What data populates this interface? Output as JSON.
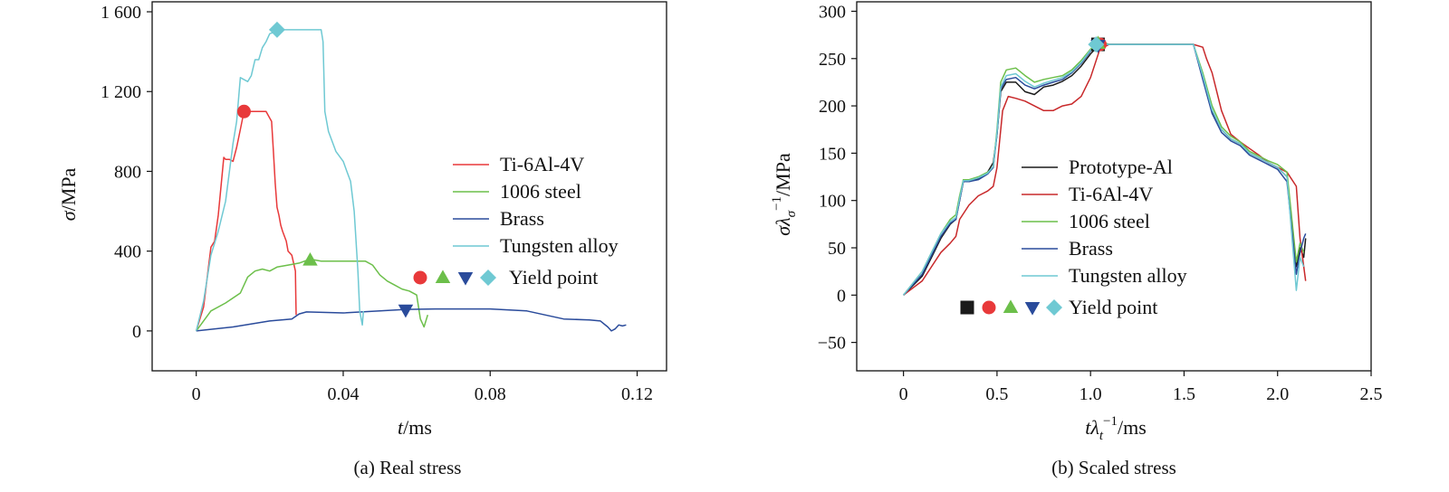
{
  "chart_data": [
    {
      "type": "line",
      "caption": "(a) Real stress",
      "xlabel": "t/ms",
      "ylabel": "σ/MPa",
      "xlim": [
        -0.012,
        0.128
      ],
      "ylim": [
        -200,
        1650
      ],
      "xticks": [
        0,
        0.04,
        0.08,
        0.12
      ],
      "xtick_labels": [
        "0",
        "0.04",
        "0.08",
        "0.12"
      ],
      "yticks": [
        0,
        400,
        800,
        1200,
        1600
      ],
      "ytick_labels": [
        "0",
        "400",
        "800",
        "1 200",
        "1 600"
      ],
      "grid": false,
      "legend_position": "right",
      "series": [
        {
          "name": "Ti-6Al-4V",
          "color": "#e8393a",
          "x": [
            0,
            0.002,
            0.004,
            0.005,
            0.006,
            0.0075,
            0.008,
            0.009,
            0.01,
            0.011,
            0.012,
            0.013,
            0.015,
            0.017,
            0.019,
            0.0205,
            0.021,
            0.0215,
            0.022,
            0.0225,
            0.023,
            0.0235,
            0.0245,
            0.025,
            0.026,
            0.027,
            0.0271,
            0.0272
          ],
          "y": [
            0,
            120,
            420,
            450,
            580,
            870,
            860,
            860,
            850,
            920,
            1010,
            1100,
            1100,
            1100,
            1100,
            1050,
            900,
            740,
            620,
            580,
            530,
            500,
            450,
            400,
            380,
            300,
            180,
            80
          ]
        },
        {
          "name": "1006 steel",
          "color": "#6cbf4a",
          "x": [
            0,
            0.004,
            0.008,
            0.012,
            0.014,
            0.016,
            0.018,
            0.02,
            0.022,
            0.025,
            0.028,
            0.031,
            0.034,
            0.038,
            0.042,
            0.046,
            0.048,
            0.05,
            0.052,
            0.054,
            0.056,
            0.058,
            0.06,
            0.061,
            0.062,
            0.063
          ],
          "y": [
            0,
            100,
            140,
            190,
            270,
            300,
            310,
            300,
            320,
            330,
            340,
            360,
            350,
            350,
            350,
            350,
            330,
            280,
            250,
            230,
            210,
            200,
            180,
            60,
            20,
            80
          ]
        },
        {
          "name": "Brass",
          "color": "#2a4b9b",
          "x": [
            0,
            0.01,
            0.02,
            0.026,
            0.028,
            0.03,
            0.04,
            0.05,
            0.057,
            0.065,
            0.08,
            0.09,
            0.1,
            0.107,
            0.11,
            0.112,
            0.113,
            0.114,
            0.115,
            0.116,
            0.117
          ],
          "y": [
            0,
            20,
            50,
            60,
            85,
            95,
            90,
            100,
            108,
            110,
            110,
            100,
            60,
            55,
            50,
            20,
            0,
            10,
            30,
            25,
            30
          ]
        },
        {
          "name": "Tungsten alloy",
          "color": "#6fc9d3",
          "x": [
            0,
            0.002,
            0.004,
            0.006,
            0.008,
            0.01,
            0.011,
            0.012,
            0.014,
            0.015,
            0.016,
            0.017,
            0.018,
            0.019,
            0.02,
            0.0215,
            0.022,
            0.026,
            0.03,
            0.034,
            0.0345,
            0.035,
            0.036,
            0.038,
            0.04,
            0.041,
            0.042,
            0.043,
            0.044,
            0.0445,
            0.0452,
            0.0455
          ],
          "y": [
            0,
            150,
            380,
            500,
            650,
            940,
            1050,
            1270,
            1250,
            1280,
            1360,
            1360,
            1420,
            1450,
            1490,
            1500,
            1510,
            1510,
            1510,
            1510,
            1450,
            1100,
            1000,
            900,
            850,
            800,
            750,
            600,
            300,
            100,
            30,
            100
          ]
        }
      ],
      "yield_points": [
        {
          "series": "Ti-6Al-4V",
          "marker": "circle",
          "color": "#e8393a",
          "x": 0.013,
          "y": 1100
        },
        {
          "series": "1006 steel",
          "marker": "triangle-up",
          "color": "#6cbf4a",
          "x": 0.031,
          "y": 355
        },
        {
          "series": "Brass",
          "marker": "triangle-down",
          "color": "#2a4b9b",
          "x": 0.057,
          "y": 105
        },
        {
          "series": "Tungsten alloy",
          "marker": "diamond",
          "color": "#6fc9d3",
          "x": 0.022,
          "y": 1510
        }
      ],
      "legend": {
        "entries": [
          "Ti-6Al-4V",
          "1006 steel",
          "Brass",
          "Tungsten alloy"
        ],
        "marker_entry_label": "Yield point",
        "marker_entry_markers": [
          "circle",
          "triangle-up",
          "triangle-down",
          "diamond"
        ]
      }
    },
    {
      "type": "line",
      "caption": "(b) Scaled stress",
      "xlabel": "tλ_t^-1/ms",
      "ylabel": "σλ_σ^-1/MPa",
      "xlim": [
        -0.25,
        2.5
      ],
      "ylim": [
        -80,
        310
      ],
      "xticks": [
        0,
        0.5,
        1.0,
        1.5,
        2.0,
        2.5
      ],
      "xtick_labels": [
        "0",
        "0.5",
        "1.0",
        "1.5",
        "2.0",
        "2.5"
      ],
      "yticks": [
        -50,
        0,
        50,
        100,
        150,
        200,
        250,
        300
      ],
      "ytick_labels": [
        "−50",
        "0",
        "50",
        "100",
        "150",
        "200",
        "250",
        "300"
      ],
      "grid": false,
      "legend_position": "center",
      "series": [
        {
          "name": "Prototype-Al",
          "color": "#1a1a1a",
          "x": [
            0,
            0.1,
            0.15,
            0.2,
            0.25,
            0.28,
            0.3,
            0.32,
            0.35,
            0.4,
            0.45,
            0.48,
            0.5,
            0.52,
            0.55,
            0.6,
            0.65,
            0.7,
            0.75,
            0.8,
            0.85,
            0.9,
            0.95,
            1.0,
            1.05,
            1.1,
            1.2,
            1.3,
            1.4,
            1.5,
            1.55,
            1.6,
            1.65,
            1.7,
            1.75,
            1.8,
            1.85,
            1.9,
            1.95,
            2.0,
            2.05,
            2.1,
            2.12,
            2.14,
            2.15
          ],
          "y": [
            0,
            20,
            40,
            60,
            75,
            80,
            100,
            120,
            120,
            123,
            130,
            140,
            170,
            215,
            225,
            225,
            215,
            212,
            220,
            222,
            226,
            232,
            242,
            255,
            265,
            265,
            265,
            265,
            265,
            265,
            265,
            230,
            195,
            175,
            165,
            160,
            150,
            145,
            140,
            135,
            125,
            30,
            50,
            40,
            60
          ]
        },
        {
          "name": "Ti-6Al-4V",
          "color": "#c8282a",
          "x": [
            0,
            0.1,
            0.15,
            0.2,
            0.25,
            0.28,
            0.3,
            0.35,
            0.4,
            0.45,
            0.48,
            0.5,
            0.53,
            0.56,
            0.6,
            0.65,
            0.7,
            0.75,
            0.8,
            0.85,
            0.9,
            0.95,
            1.0,
            1.05,
            1.1,
            1.2,
            1.3,
            1.4,
            1.5,
            1.55,
            1.6,
            1.62,
            1.65,
            1.7,
            1.75,
            1.8,
            1.85,
            1.9,
            1.95,
            2.0,
            2.05,
            2.1,
            2.12,
            2.15
          ],
          "y": [
            0,
            15,
            30,
            45,
            55,
            62,
            80,
            95,
            105,
            110,
            115,
            135,
            195,
            210,
            208,
            205,
            200,
            195,
            195,
            200,
            202,
            210,
            230,
            260,
            265,
            265,
            265,
            265,
            265,
            265,
            262,
            250,
            235,
            195,
            170,
            162,
            155,
            148,
            140,
            135,
            130,
            115,
            60,
            15
          ]
        },
        {
          "name": "1006 steel",
          "color": "#6cbf4a",
          "x": [
            0,
            0.1,
            0.15,
            0.2,
            0.25,
            0.28,
            0.3,
            0.32,
            0.35,
            0.4,
            0.45,
            0.48,
            0.5,
            0.52,
            0.55,
            0.6,
            0.65,
            0.7,
            0.75,
            0.8,
            0.85,
            0.9,
            0.95,
            1.0,
            1.05,
            1.1,
            1.2,
            1.3,
            1.4,
            1.5,
            1.55,
            1.6,
            1.65,
            1.7,
            1.75,
            1.8,
            1.85,
            1.9,
            1.95,
            2.0,
            2.05,
            2.1,
            2.12,
            2.14
          ],
          "y": [
            0,
            25,
            45,
            65,
            80,
            85,
            105,
            122,
            122,
            125,
            130,
            135,
            175,
            225,
            238,
            240,
            232,
            225,
            228,
            230,
            232,
            238,
            248,
            260,
            268,
            265,
            265,
            265,
            265,
            265,
            265,
            235,
            200,
            178,
            168,
            162,
            152,
            147,
            142,
            138,
            130,
            35,
            55,
            45
          ]
        },
        {
          "name": "Brass",
          "color": "#2a4b9b",
          "x": [
            0,
            0.1,
            0.15,
            0.2,
            0.25,
            0.28,
            0.3,
            0.32,
            0.35,
            0.4,
            0.45,
            0.48,
            0.5,
            0.52,
            0.55,
            0.6,
            0.65,
            0.7,
            0.75,
            0.8,
            0.85,
            0.9,
            0.95,
            1.0,
            1.05,
            1.1,
            1.2,
            1.3,
            1.4,
            1.5,
            1.55,
            1.6,
            1.65,
            1.7,
            1.75,
            1.8,
            1.85,
            1.9,
            1.95,
            2.0,
            2.05,
            2.1,
            2.12,
            2.14,
            2.15
          ],
          "y": [
            0,
            22,
            42,
            62,
            76,
            80,
            100,
            120,
            120,
            122,
            128,
            135,
            170,
            218,
            228,
            230,
            222,
            218,
            222,
            225,
            228,
            235,
            245,
            258,
            265,
            265,
            265,
            265,
            265,
            265,
            265,
            228,
            192,
            172,
            163,
            158,
            148,
            143,
            138,
            133,
            120,
            22,
            45,
            60,
            65
          ]
        },
        {
          "name": "Tungsten alloy",
          "color": "#6fc9d3",
          "x": [
            0,
            0.1,
            0.15,
            0.2,
            0.25,
            0.28,
            0.3,
            0.32,
            0.35,
            0.4,
            0.45,
            0.48,
            0.5,
            0.52,
            0.55,
            0.6,
            0.65,
            0.7,
            0.75,
            0.8,
            0.85,
            0.9,
            0.95,
            1.0,
            1.05,
            1.1,
            1.2,
            1.3,
            1.4,
            1.5,
            1.55,
            1.6,
            1.65,
            1.7,
            1.75,
            1.8,
            1.85,
            1.9,
            1.95,
            2.0,
            2.05,
            2.1,
            2.12,
            2.14
          ],
          "y": [
            0,
            25,
            45,
            65,
            78,
            82,
            102,
            121,
            121,
            124,
            129,
            136,
            172,
            220,
            232,
            234,
            226,
            220,
            224,
            227,
            230,
            236,
            246,
            259,
            265,
            265,
            265,
            265,
            265,
            265,
            265,
            232,
            196,
            175,
            165,
            160,
            150,
            145,
            140,
            135,
            125,
            5,
            40,
            30
          ]
        }
      ],
      "yield_points": [
        {
          "series": "Prototype-Al",
          "marker": "square",
          "color": "#1a1a1a",
          "x": 1.04,
          "y": 265
        },
        {
          "series": "Ti-6Al-4V",
          "marker": "circle",
          "color": "#e8393a",
          "x": 1.05,
          "y": 265
        },
        {
          "series": "1006 steel",
          "marker": "triangle-up",
          "color": "#6cbf4a",
          "x": 1.04,
          "y": 266
        },
        {
          "series": "Brass",
          "marker": "triangle-down",
          "color": "#2a4b9b",
          "x": 1.04,
          "y": 264
        },
        {
          "series": "Tungsten alloy",
          "marker": "diamond",
          "color": "#6fc9d3",
          "x": 1.03,
          "y": 265
        }
      ],
      "legend": {
        "entries": [
          "Prototype-Al",
          "Ti-6Al-4V",
          "1006 steel",
          "Brass",
          "Tungsten alloy"
        ],
        "marker_entry_label": "Yield point",
        "marker_entry_markers": [
          "square",
          "circle",
          "triangle-up",
          "triangle-down",
          "diamond"
        ]
      }
    }
  ]
}
